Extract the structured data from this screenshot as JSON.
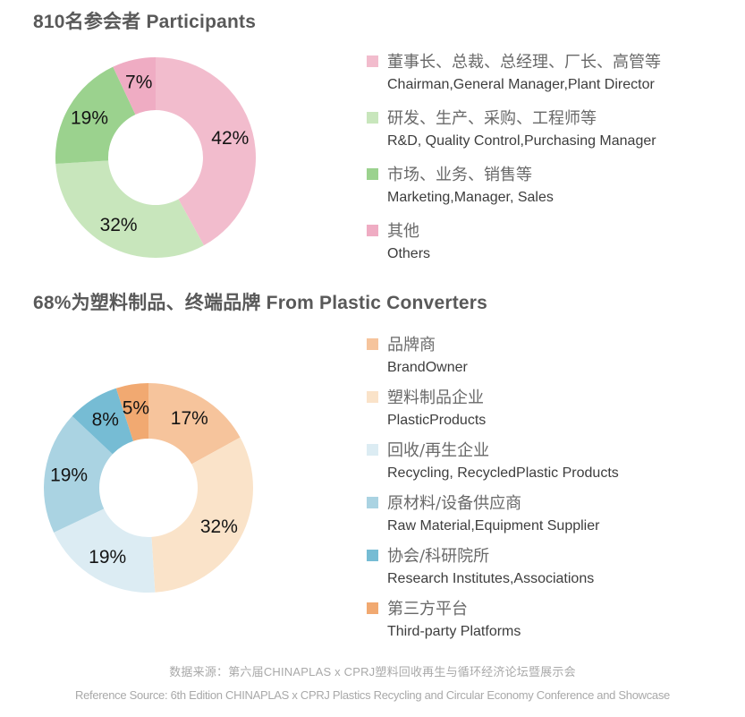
{
  "page": {
    "background": "#ffffff"
  },
  "sections": [
    {
      "title": "810名参会者 Participants"
    },
    {
      "title": "68%为塑料制品、终端品牌 From Plastic Converters"
    }
  ],
  "chart_data": [
    {
      "type": "pie",
      "subtype": "donut",
      "title": "810名参会者 Participants",
      "start_angle_deg": 0,
      "direction": "clockwise",
      "legend_position": "right",
      "label_format": "percent",
      "slices": [
        {
          "label_cn": "董事长、总裁、总经理、厂长、高管等",
          "label_en": "Chairman,General Manager,Plant Director",
          "value_pct": 42,
          "color": "#f2bccd"
        },
        {
          "label_cn": "研发、生产、采购、工程师等",
          "label_en": "R&D, Quality Control,Purchasing Manager",
          "value_pct": 32,
          "color": "#c8e6bc"
        },
        {
          "label_cn": "市场、业务、销售等",
          "label_en": "Marketing,Manager, Sales",
          "value_pct": 19,
          "color": "#9bd28e"
        },
        {
          "label_cn": "其他",
          "label_en": "Others",
          "value_pct": 7,
          "color": "#efacc3"
        }
      ]
    },
    {
      "type": "pie",
      "subtype": "donut",
      "title": "68%为塑料制品、终端品牌 From Plastic Converters",
      "start_angle_deg": 0,
      "direction": "clockwise",
      "legend_position": "right",
      "label_format": "percent",
      "slices": [
        {
          "label_cn": "品牌商",
          "label_en": "BrandOwner",
          "value_pct": 17,
          "color": "#f6c49c"
        },
        {
          "label_cn": "塑料制品企业",
          "label_en": "PlasticProducts",
          "value_pct": 32,
          "color": "#fae3c9"
        },
        {
          "label_cn": "回收/再生企业",
          "label_en": "Recycling, RecycledPlastic Products",
          "value_pct": 19,
          "color": "#dcecf3"
        },
        {
          "label_cn": "原材料/设备供应商",
          "label_en": "Raw Material,Equipment Supplier",
          "value_pct": 19,
          "color": "#aad3e2"
        },
        {
          "label_cn": "协会/科研院所",
          "label_en": "Research Institutes,Associations",
          "value_pct": 8,
          "color": "#76bcd4"
        },
        {
          "label_cn": "第三方平台",
          "label_en": "Third-party Platforms",
          "value_pct": 5,
          "color": "#f1a971"
        }
      ]
    }
  ],
  "footer": {
    "line1": "数据来源：第六届CHINAPLAS x CPRJ塑料回收再生与循环经济论坛暨展示会",
    "line2": "Reference Source: 6th Edition CHINAPLAS x CPRJ Plastics Recycling and Circular Economy Conference and Showcase"
  }
}
